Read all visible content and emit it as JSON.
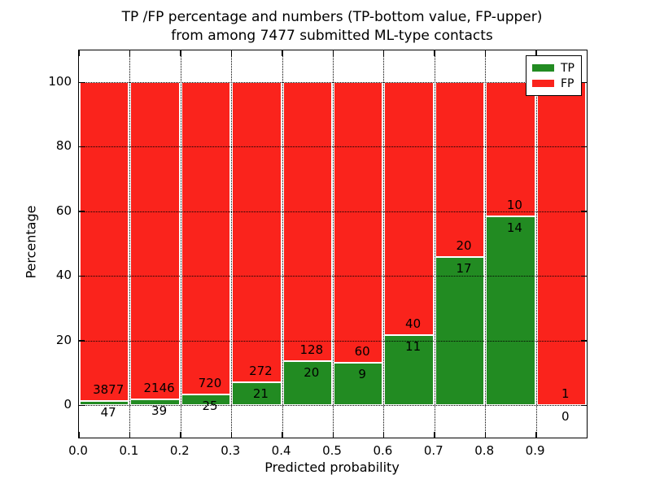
{
  "chart_data": {
    "type": "bar",
    "variant": "stacked-100-percent",
    "title_line1": "TP /FP percentage and numbers (TP-bottom value, FP-upper)",
    "title_line2": "from among 7477 submitted ML-type contacts",
    "xlabel": "Predicted probability",
    "ylabel": "Percentage",
    "bin_edges": [
      0.0,
      0.1,
      0.2,
      0.3,
      0.4,
      0.5,
      0.6,
      0.7,
      0.8,
      0.9,
      1.0
    ],
    "series": [
      {
        "name": "TP",
        "color": "#228b22",
        "values": [
          47,
          39,
          25,
          21,
          20,
          9,
          11,
          17,
          14,
          0
        ]
      },
      {
        "name": "FP",
        "color": "#fa231c",
        "values": [
          3877,
          2146,
          720,
          272,
          128,
          60,
          40,
          20,
          10,
          1
        ]
      }
    ],
    "tp_percent_of_bin": [
      1.2,
      1.8,
      3.4,
      7.2,
      13.5,
      13.0,
      21.6,
      45.9,
      58.3,
      0.0
    ],
    "yticks": [
      0,
      20,
      40,
      60,
      80,
      100
    ],
    "xtick_labels": [
      "0.0",
      "0.1",
      "0.2",
      "0.3",
      "0.4",
      "0.5",
      "0.6",
      "0.7",
      "0.8",
      "0.9"
    ],
    "ylim": [
      -10.2,
      110.3
    ],
    "xlim": [
      0,
      1
    ],
    "grid": {
      "style": "dotted",
      "color": "#000000"
    },
    "legend": {
      "position": "upper-right",
      "entries": [
        {
          "label": "TP",
          "color": "#228b22"
        },
        {
          "label": "FP",
          "color": "#fa231c"
        }
      ]
    },
    "axis_color": "#000000",
    "background": "#ffffff"
  }
}
